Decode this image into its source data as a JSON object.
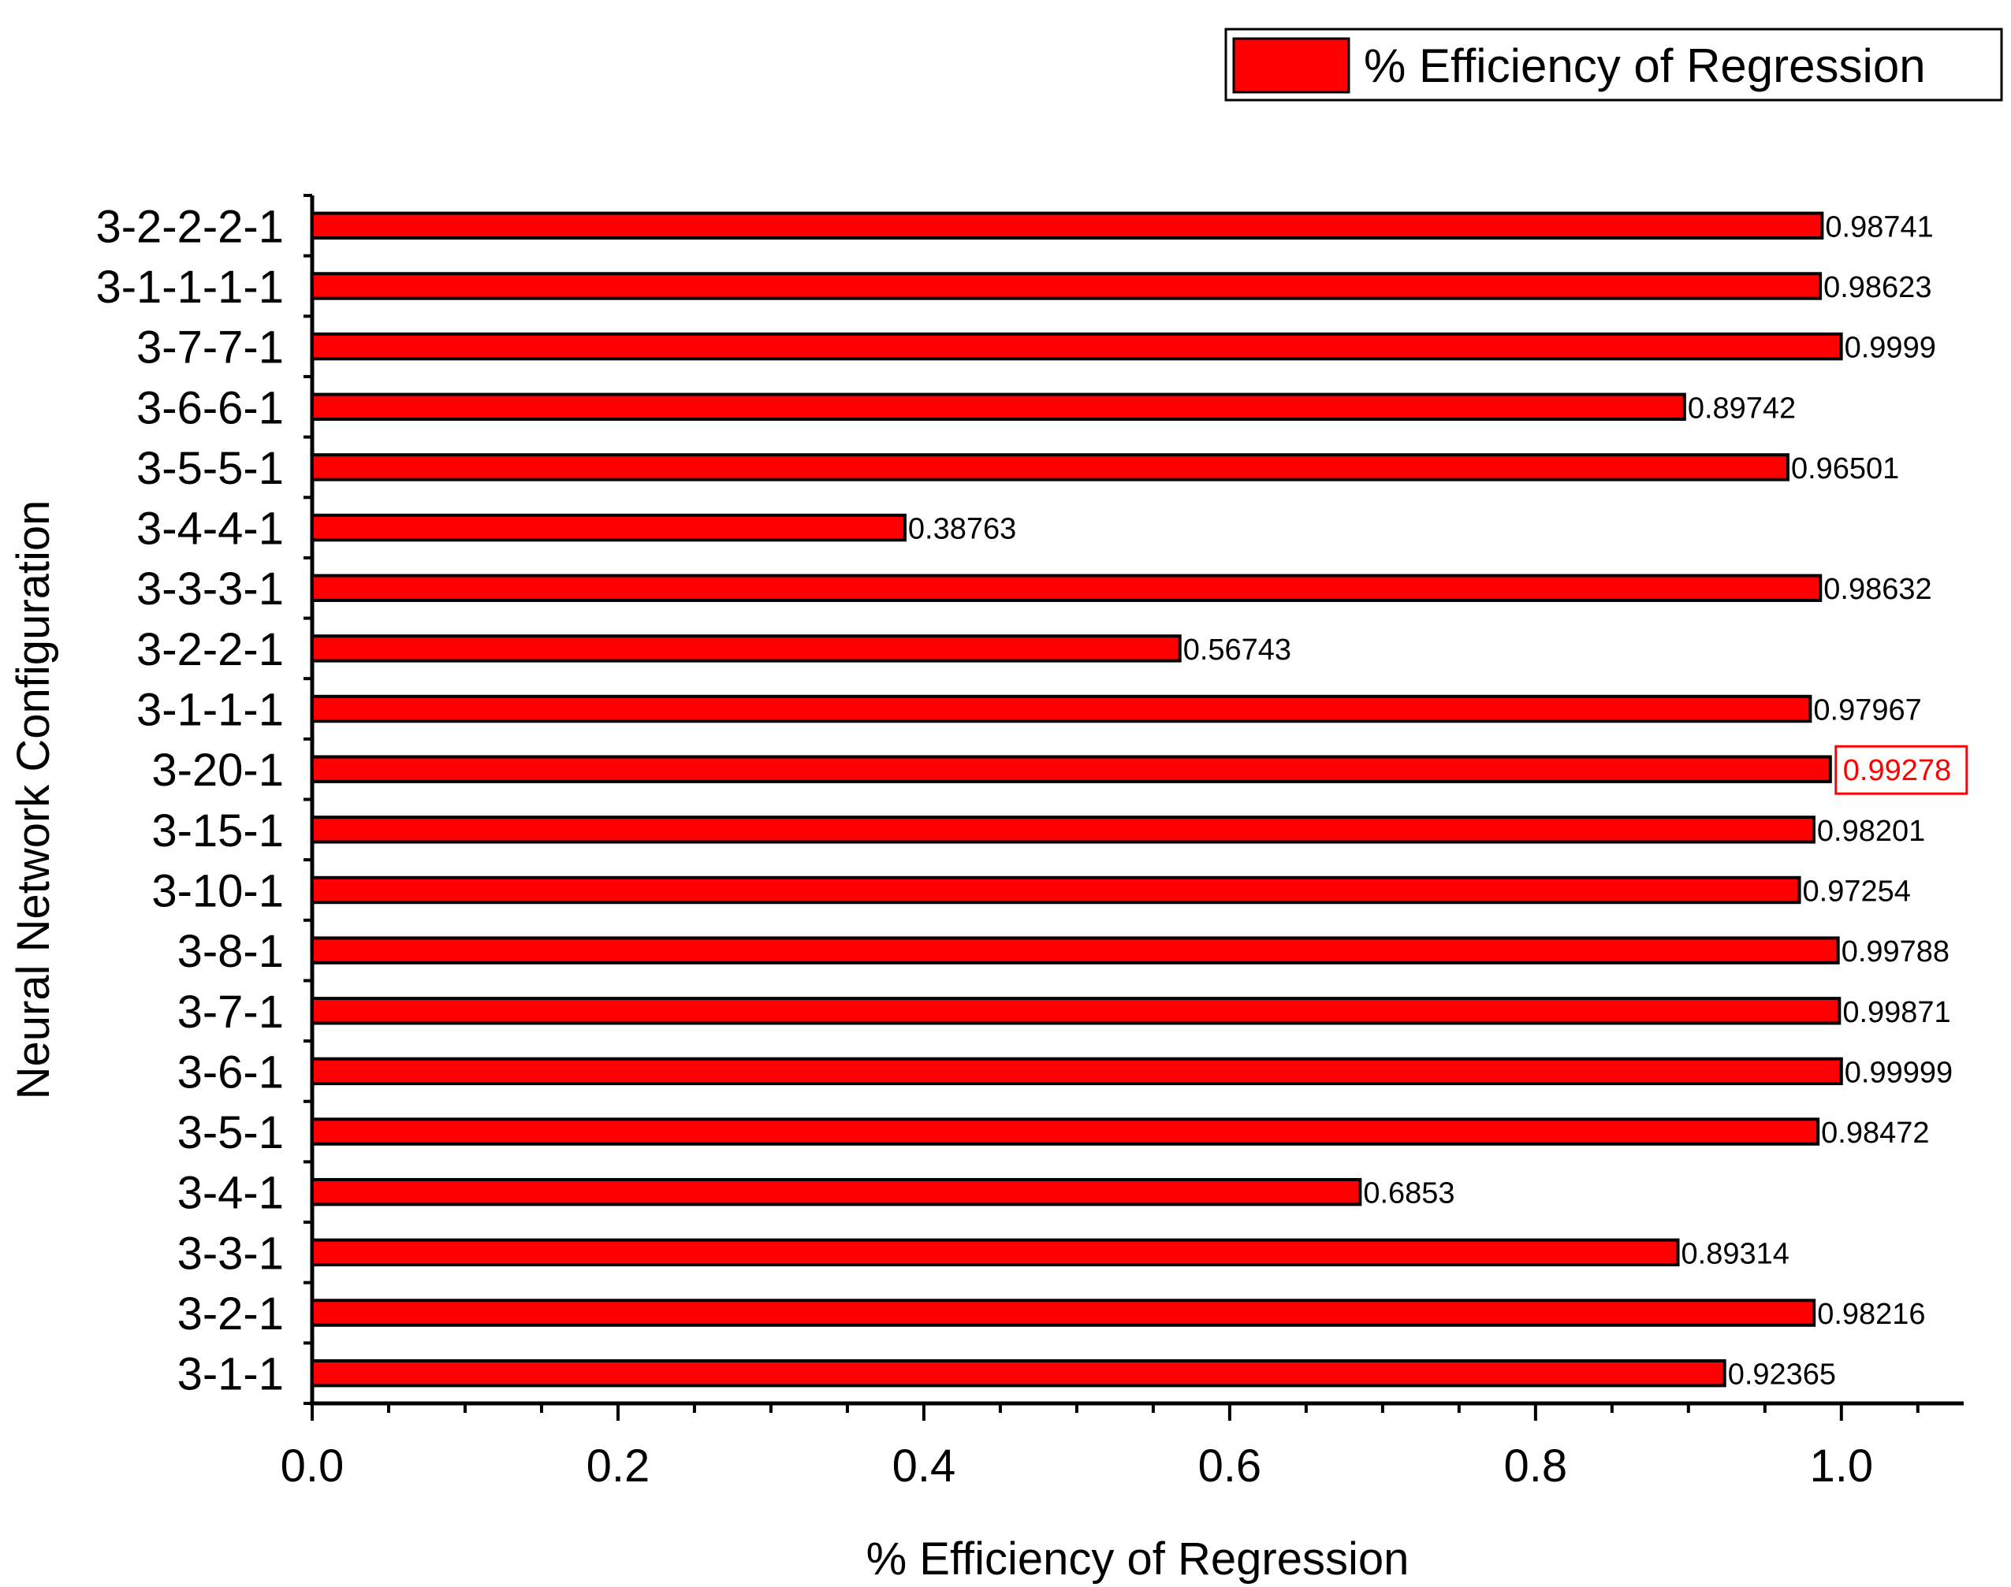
{
  "chart_data": {
    "type": "bar",
    "orientation": "horizontal",
    "title": "",
    "xlabel": "% Efficiency of Regression",
    "ylabel": "Neural Network Configuration",
    "xlim": [
      0,
      1.08
    ],
    "xticks": [
      0.0,
      0.2,
      0.4,
      0.6,
      0.8,
      1.0
    ],
    "xtick_labels": [
      "0.0",
      "0.2",
      "0.4",
      "0.6",
      "0.8",
      "1.0"
    ],
    "grid": false,
    "legend": {
      "position": "top-right",
      "entries": [
        "% Efficiency of Regression"
      ]
    },
    "bar_color": "#ff0000",
    "highlight_color": "#ff0000",
    "highlighted_category": "3-20-1",
    "categories": [
      "3-2-2-2-1",
      "3-1-1-1-1",
      "3-7-7-1",
      "3-6-6-1",
      "3-5-5-1",
      "3-4-4-1",
      "3-3-3-1",
      "3-2-2-1",
      "3-1-1-1",
      "3-20-1",
      "3-15-1",
      "3-10-1",
      "3-8-1",
      "3-7-1",
      "3-6-1",
      "3-5-1",
      "3-4-1",
      "3-3-1",
      "3-2-1",
      "3-1-1"
    ],
    "values": [
      0.98741,
      0.98623,
      0.9999,
      0.89742,
      0.96501,
      0.38763,
      0.98632,
      0.56743,
      0.97967,
      0.99278,
      0.98201,
      0.97254,
      0.99788,
      0.99871,
      0.99999,
      0.98472,
      0.6853,
      0.89314,
      0.98216,
      0.92365
    ],
    "value_labels": [
      "0.98741",
      "0.98623",
      "0.9999",
      "0.89742",
      "0.96501",
      "0.38763",
      "0.98632",
      "0.56743",
      "0.97967",
      "0.99278",
      "0.98201",
      "0.97254",
      "0.99788",
      "0.99871",
      "0.99999",
      "0.98472",
      "0.6853",
      "0.89314",
      "0.98216",
      "0.92365"
    ],
    "series": [
      {
        "name": "% Efficiency of Regression"
      }
    ]
  }
}
